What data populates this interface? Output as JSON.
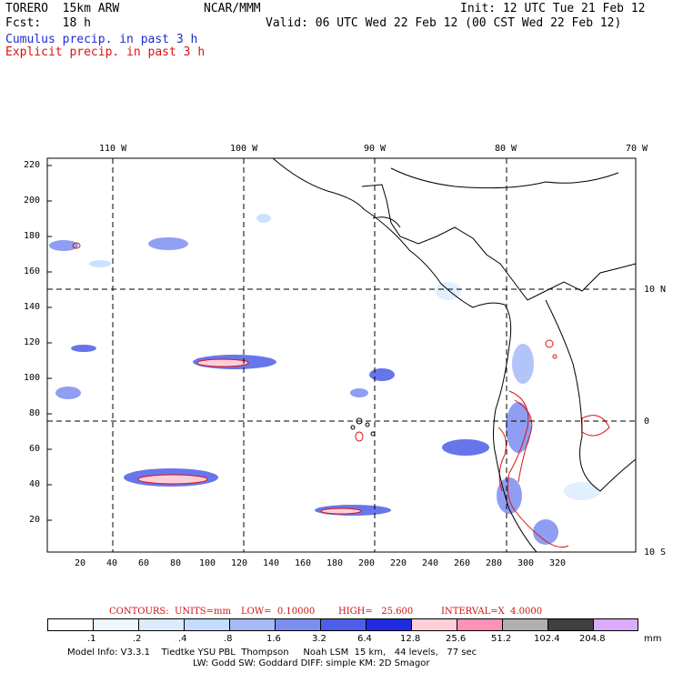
{
  "header": {
    "model": "TORERO  15km ARW",
    "center": "NCAR/MMM",
    "init": "Init: 12 UTC Tue 21 Feb 12",
    "fcst": "Fcst:   18 h",
    "valid": "Valid: 06 UTC Wed 22 Feb 12 (00 CST Wed 22 Feb 12)",
    "cumulus_label": "Cumulus precip. in past 3 h",
    "explicit_label": "Explicit precip. in past 3 h"
  },
  "map": {
    "lon_labels": [
      "110 W",
      "100 W",
      "90 W",
      "80 W",
      "70 W"
    ],
    "lat_labels": [
      "10 N",
      "0",
      "10 S"
    ],
    "y_ticks": [
      "220",
      "200",
      "180",
      "160",
      "140",
      "120",
      "100",
      "80",
      "60",
      "40",
      "20"
    ],
    "x_ticks": [
      "20",
      "40",
      "60",
      "80",
      "100",
      "120",
      "140",
      "160",
      "180",
      "200",
      "220",
      "240",
      "260",
      "280",
      "300",
      "320"
    ]
  },
  "contours": {
    "units": "CONTOURS:  UNITS=mm",
    "low": "LOW=  0.10000",
    "high": "HIGH=   25.600",
    "interval": "INTERVAL=X  4.0000"
  },
  "colorbar": {
    "unit": "mm",
    "labels": [
      ".1",
      ".2",
      ".4",
      ".8",
      "1.6",
      "3.2",
      "6.4",
      "12.8",
      "25.6",
      "51.2",
      "102.4",
      "204.8"
    ],
    "colors": [
      "#ffffff",
      "#eef6ff",
      "#dcecff",
      "#c4dcff",
      "#a6baf7",
      "#7c8ef0",
      "#4d5ee8",
      "#1f2be0",
      "#ffcfd8",
      "#ff90b8",
      "#b0b0b0",
      "#404040",
      "#dcaaff"
    ]
  },
  "footer": {
    "line1": "Model Info: V3.3.1    Tiedtke YSU PBL  Thompson     Noah LSM  15 km,   44 levels,   77 sec",
    "line2": "LW: Godd SW: Goddard DIFF: simple KM: 2D Smagor"
  }
}
